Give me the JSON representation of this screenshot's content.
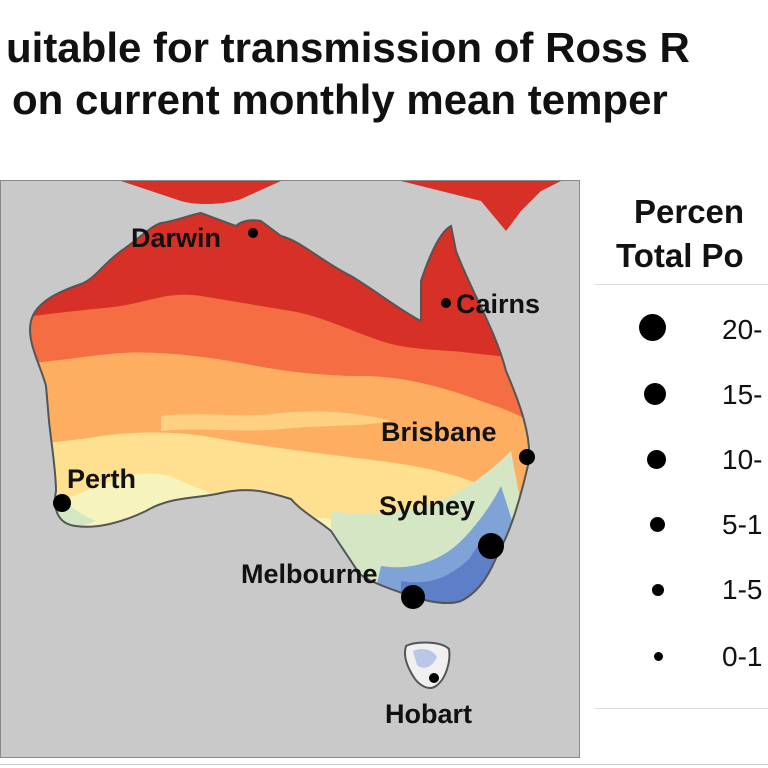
{
  "title": {
    "line1": "uitable for transmission of Ross R",
    "line2": "on current monthly mean temper"
  },
  "map": {
    "cities": [
      {
        "name": "Darwin"
      },
      {
        "name": "Cairns"
      },
      {
        "name": "Brisbane"
      },
      {
        "name": "Perth"
      },
      {
        "name": "Sydney"
      },
      {
        "name": "Melbourne"
      },
      {
        "name": "Hobart"
      }
    ],
    "colors": {
      "ocean": "#c9c9c9",
      "hot": "#d73027",
      "warm": "#f46d43",
      "mild": "#fdae61",
      "cool": "#fee090",
      "pale": "#f7f3bd",
      "mint": "#d4e6c4",
      "blue": "#7fa3d6",
      "deepblue": "#5d7fc7"
    }
  },
  "legend": {
    "title_line1": "Percen",
    "title_line2": "Total Po",
    "items": [
      {
        "label": "20-"
      },
      {
        "label": "15-"
      },
      {
        "label": "10-"
      },
      {
        "label": "5-1"
      },
      {
        "label": "1-5"
      },
      {
        "label": "0-1"
      }
    ]
  }
}
